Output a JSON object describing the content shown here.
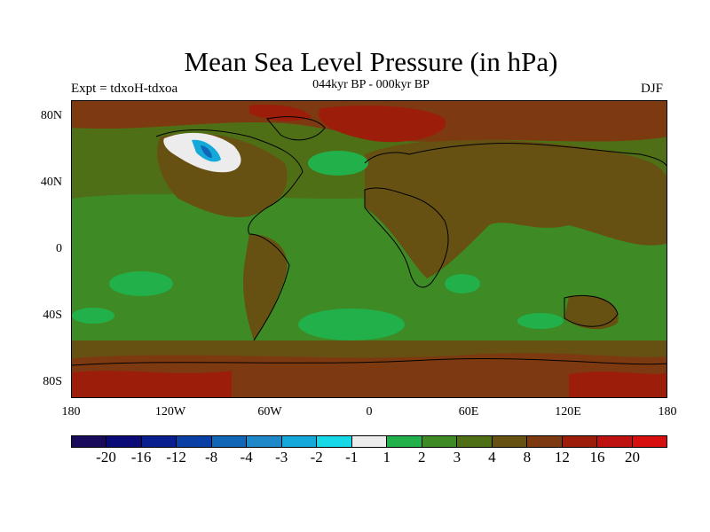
{
  "title": "Mean Sea Level Pressure (in hPa)",
  "subtitle_left": "Expt = tdxoH-tdxoa",
  "subtitle_center": "044kyr BP - 000kyr BP",
  "subtitle_right": "DJF",
  "y_ticks": [
    "80N",
    "40N",
    "0",
    "40S",
    "80S"
  ],
  "x_ticks": [
    "180",
    "120W",
    "60W",
    "0",
    "60E",
    "120E",
    "180"
  ],
  "colorbar": {
    "labels": [
      "-20",
      "-16",
      "-12",
      "-8",
      "-4",
      "-3",
      "-2",
      "-1",
      "1",
      "2",
      "3",
      "4",
      "8",
      "12",
      "16",
      "20"
    ],
    "colors": [
      "#1a0a5c",
      "#0b0b78",
      "#0a1f8f",
      "#0a3fa5",
      "#1266b8",
      "#1f88c8",
      "#14a9d8",
      "#16d8e6",
      "#ececec",
      "#22b04a",
      "#3e8a24",
      "#4f6f16",
      "#665012",
      "#7d3a10",
      "#9c1e0a",
      "#bd1210",
      "#d70f0f"
    ]
  },
  "colors": {
    "ocean_mid": "#3e8a24",
    "ocean_deep": "#4f6f16",
    "land_brown": "#665012",
    "polar_red": "#9c1e0a",
    "bright_green": "#22b04a",
    "ice": "#ececec"
  }
}
